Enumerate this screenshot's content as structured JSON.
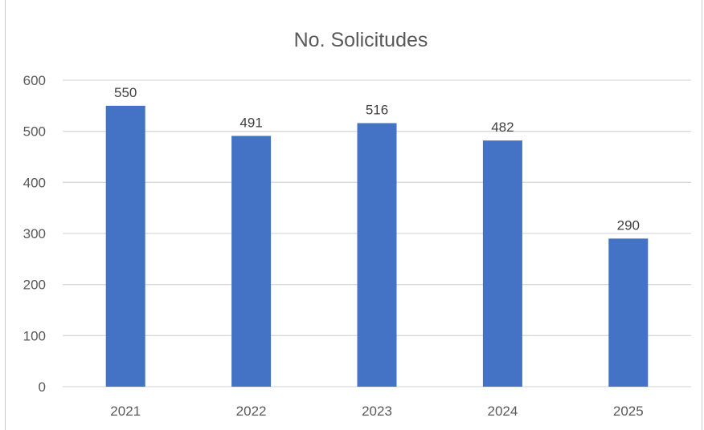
{
  "chart_data": {
    "type": "bar",
    "title": "No. Solicitudes",
    "categories": [
      "2021",
      "2022",
      "2023",
      "2024",
      "2025"
    ],
    "values": [
      550,
      491,
      516,
      482,
      290
    ],
    "data_labels": [
      "550",
      "491",
      "516",
      "482",
      "290"
    ],
    "yticks": [
      "0",
      "100",
      "200",
      "300",
      "400",
      "500",
      "600"
    ],
    "ylim": [
      0,
      600
    ],
    "xlabel": "",
    "ylabel": "",
    "grid": true,
    "legend": "none",
    "bar_color": "#4472C4"
  }
}
